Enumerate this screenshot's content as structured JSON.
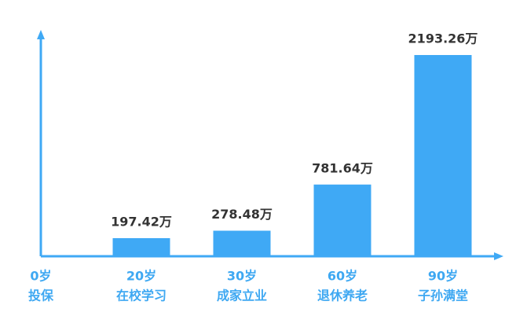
{
  "chart_data": {
    "type": "bar",
    "categories": [
      [
        "0岁",
        "投保"
      ],
      [
        "20岁",
        "在校学习"
      ],
      [
        "30岁",
        "成家立业"
      ],
      [
        "60岁",
        "退休养老"
      ],
      [
        "90岁",
        "子孙满堂"
      ]
    ],
    "values": [
      null,
      197.42,
      278.48,
      781.64,
      2193.26
    ],
    "value_labels": [
      null,
      "197.42万",
      "278.48万",
      "781.64万",
      "2193.26万"
    ],
    "color": "#3fa9f5"
  }
}
